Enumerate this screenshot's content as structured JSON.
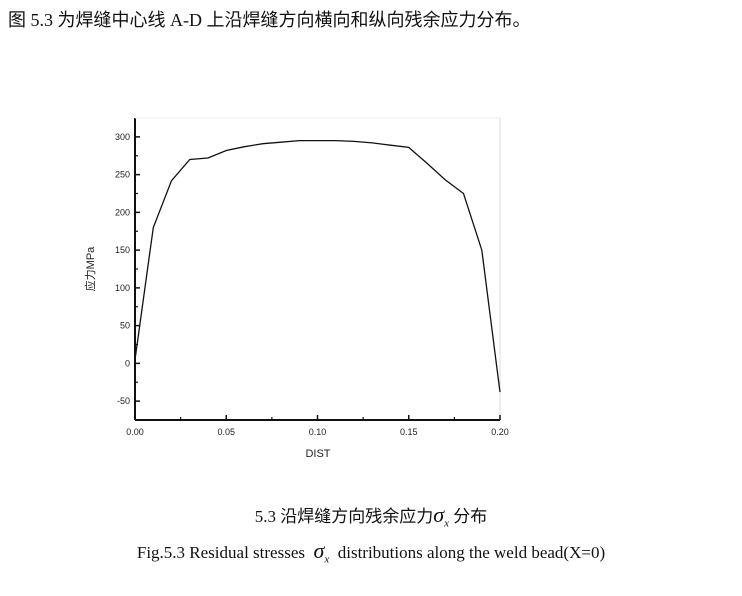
{
  "heading": "图 5.3 为焊缝中心线 A-D 上沿焊缝方向横向和纵向残余应力分布。",
  "caption_cn": {
    "prefix": "5.3  沿焊缝方向残余应力",
    "symbol": "σ",
    "subscript": "x",
    "suffix": " 分布"
  },
  "caption_en": {
    "prefix": "Fig.5.3 Residual stresses ",
    "symbol": "σ",
    "subscript": "x",
    "suffix": " distributions along the weld bead(X=0)"
  },
  "chart_data": {
    "type": "line",
    "title": "",
    "xlabel": "DIST",
    "ylabel": "应力MPa",
    "xlim": [
      0,
      0.2
    ],
    "ylim": [
      -75,
      325
    ],
    "xticks": [
      "0.00",
      "0.05",
      "0.10",
      "0.15",
      "0.20"
    ],
    "yticks": [
      "-50",
      "0",
      "50",
      "100",
      "150",
      "200",
      "250",
      "300"
    ],
    "grid": false,
    "series": [
      {
        "x": [
          0,
          0.01,
          0.02,
          0.03,
          0.04,
          0.05,
          0.06,
          0.07,
          0.08,
          0.09,
          0.1,
          0.11,
          0.12,
          0.13,
          0.14,
          0.15,
          0.16,
          0.17,
          0.18,
          0.19,
          0.2
        ],
        "y": [
          5,
          180,
          242,
          270,
          272,
          282,
          287,
          291,
          293,
          295,
          295,
          295,
          294,
          292,
          289,
          286,
          265,
          243,
          225,
          150,
          -38
        ]
      }
    ],
    "line_color": "#111111"
  }
}
